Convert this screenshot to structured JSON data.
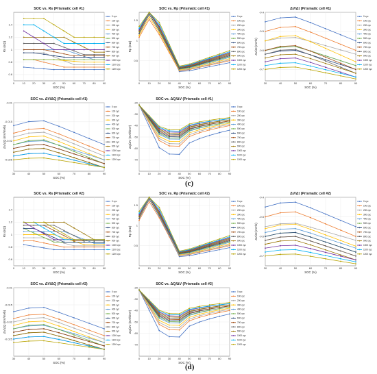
{
  "captions": {
    "c": "(c)",
    "d": "(d)"
  },
  "legend_labels": [
    "0 cyc",
    "100 cyc",
    "200 cyc",
    "300 cyc",
    "400 cyc",
    "500 cyc",
    "600 cyc",
    "700 cyc",
    "800 cyc",
    "900 cyc",
    "1000 cyc",
    "1100 cyc",
    "1200 cyc"
  ],
  "series_colors": [
    "#4472c4",
    "#ed7d31",
    "#a5a5a5",
    "#ffc000",
    "#5b9bd5",
    "#70ad47",
    "#264478",
    "#9e480e",
    "#636363",
    "#997300",
    "#7030a0",
    "#00b0f0",
    "#b8a300"
  ],
  "chart_data": [
    {
      "type": "line",
      "title": "SOC vs. Rs (Prismatic cell #1)",
      "xlabel": "SOC (%)",
      "ylabel": "Rs (mΩ)",
      "x": [
        10,
        20,
        30,
        40,
        50,
        60,
        70,
        80,
        90
      ],
      "xlim": [
        0,
        90
      ],
      "ylim": [
        0.5,
        1.6
      ],
      "xticks": [
        0,
        10,
        20,
        30,
        40,
        50,
        60,
        70,
        80,
        90
      ],
      "yticks": [
        0.6,
        0.8,
        1.0,
        1.2,
        1.4
      ],
      "start": [
        0.72,
        0.84,
        0.95,
        0.84,
        1.0,
        0.84,
        0.95,
        1.0,
        1.1,
        1.2,
        1.3,
        1.4,
        1.5
      ],
      "end": [
        0.68,
        0.72,
        0.76,
        0.8,
        0.84,
        0.84,
        0.88,
        0.9,
        0.92,
        0.96,
        1.0,
        1.1,
        1.2
      ],
      "shape": "rs"
    },
    {
      "type": "line",
      "title": "SOC vs. Rp (Prismatic cell #1)",
      "xlabel": "SOC (%)",
      "ylabel": "Rp (mΩ)",
      "x": [
        0,
        10,
        20,
        30,
        40,
        50,
        60,
        70,
        80,
        90
      ],
      "xlim": [
        0,
        90
      ],
      "ylim": [
        0,
        1.7
      ],
      "xticks": [
        0,
        10,
        20,
        30,
        40,
        50,
        60,
        70,
        80,
        90
      ],
      "yticks": [
        0.5,
        1.0,
        1.5
      ],
      "start": [
        1.4,
        1.2,
        1.3,
        1.25,
        1.3,
        1.35,
        1.3,
        1.4,
        1.3,
        1.35,
        1.4,
        1.45,
        1.5
      ],
      "end": [
        0.45,
        0.5,
        0.52,
        0.55,
        0.58,
        0.6,
        0.62,
        0.64,
        0.66,
        0.68,
        0.7,
        0.72,
        0.75
      ],
      "shape": "rp"
    },
    {
      "type": "line",
      "title": "ΔV/Δt (Prismatic cell #1)",
      "xlabel": "SOC (%)",
      "ylabel": "ΔV/Δt (mV/s)",
      "x": [
        30,
        40,
        50,
        60,
        70,
        80,
        90
      ],
      "xlim": [
        30,
        90
      ],
      "ylim": [
        -0.76,
        -0.4
      ],
      "xticks": [
        30,
        40,
        50,
        60,
        70,
        80,
        90
      ],
      "yticks": [
        -0.7,
        -0.6,
        -0.5,
        -0.4
      ],
      "start": [
        -0.45,
        -0.5,
        -0.55,
        -0.55,
        -0.6,
        -0.6,
        -0.62,
        -0.6,
        -0.62,
        -0.64,
        -0.66,
        -0.68,
        -0.7
      ],
      "end": [
        -0.55,
        -0.6,
        -0.62,
        -0.66,
        -0.68,
        -0.68,
        -0.7,
        -0.7,
        -0.72,
        -0.72,
        -0.74,
        -0.74,
        -0.75
      ],
      "shape": "dv"
    },
    {
      "type": "line",
      "title": "SOC vs. ΔV/ΔQ (Prismatic cell #1)",
      "xlabel": "SOC (%)",
      "ylabel": "ΔV/ΔQ (mV/mAh)",
      "x": [
        30,
        40,
        50,
        60,
        70,
        80,
        90
      ],
      "xlim": [
        30,
        90
      ],
      "ylim": [
        -0.028,
        -0.01
      ],
      "xticks": [
        30,
        40,
        50,
        60,
        70,
        80,
        90
      ],
      "yticks": [
        -0.025,
        -0.02,
        -0.015,
        -0.01
      ],
      "start": [
        -0.016,
        -0.018,
        -0.019,
        -0.02,
        -0.021,
        -0.021,
        -0.022,
        -0.022,
        -0.023,
        -0.023,
        -0.024,
        -0.024,
        -0.025
      ],
      "end": [
        -0.021,
        -0.023,
        -0.024,
        -0.025,
        -0.025,
        -0.026,
        -0.026,
        -0.026,
        -0.027,
        -0.027,
        -0.027,
        -0.027,
        -0.027
      ],
      "shape": "dv"
    },
    {
      "type": "line",
      "title": "SOC vs. ΔQ/ΔV (Prismatic cell #1)",
      "xlabel": "SOC (%)",
      "ylabel": "ΔQ/ΔV (mAh/mV)",
      "x": [
        0,
        10,
        20,
        30,
        40,
        50,
        60,
        70,
        80,
        90
      ],
      "xlim": [
        0,
        90
      ],
      "ylim": [
        -80,
        -20
      ],
      "xticks": [
        0,
        10,
        20,
        30,
        40,
        50,
        60,
        70,
        80,
        90
      ],
      "yticks": [
        -70,
        -60,
        -50,
        -40,
        -30,
        -20
      ],
      "start": [
        -64,
        -57,
        -55,
        -53,
        -51,
        -50,
        -49,
        -48,
        -47,
        -46,
        -45,
        -44,
        -43
      ],
      "end": [
        -44,
        -40,
        -39,
        -38,
        -37,
        -37,
        -36,
        -36,
        -35,
        -35,
        -34,
        -34,
        -33
      ],
      "shape": "dq"
    },
    {
      "type": "line",
      "title": "SOC vs. Rs (Prismatic cell #2)",
      "xlabel": "SOC (%)",
      "ylabel": "Rs (mΩ)",
      "x": [
        10,
        20,
        30,
        40,
        50,
        60,
        70,
        80,
        90
      ],
      "xlim": [
        0,
        90
      ],
      "ylim": [
        0.5,
        1.6
      ],
      "xticks": [
        0,
        10,
        20,
        30,
        40,
        50,
        60,
        70,
        80,
        90
      ],
      "yticks": [
        0.6,
        0.8,
        1.0,
        1.2,
        1.4
      ],
      "start": [
        0.84,
        0.9,
        0.95,
        1.0,
        1.05,
        1.1,
        1.1,
        1.15,
        1.15,
        1.2,
        1.2,
        1.2,
        1.2
      ],
      "end": [
        0.76,
        0.8,
        0.82,
        0.84,
        0.86,
        0.88,
        0.88,
        0.9,
        0.9,
        0.92,
        0.92,
        0.92,
        0.92
      ],
      "shape": "rs"
    },
    {
      "type": "line",
      "title": "SOC vs. Rp (Prismatic cell #2)",
      "xlabel": "SOC (%)",
      "ylabel": "Rp (mΩ)",
      "x": [
        0,
        10,
        20,
        30,
        40,
        50,
        60,
        70,
        80,
        90
      ],
      "xlim": [
        0,
        90
      ],
      "ylim": [
        0,
        1.7
      ],
      "xticks": [
        0,
        10,
        20,
        30,
        40,
        50,
        60,
        70,
        80,
        90
      ],
      "yticks": [
        0.5,
        1.0,
        1.5
      ],
      "start": [
        1.3,
        1.25,
        1.3,
        1.35,
        1.3,
        1.4,
        1.35,
        1.4,
        1.3,
        1.35,
        1.4,
        1.45,
        1.5
      ],
      "end": [
        0.45,
        0.5,
        0.52,
        0.55,
        0.58,
        0.6,
        0.62,
        0.64,
        0.66,
        0.68,
        0.7,
        0.72,
        0.75
      ],
      "shape": "rp"
    },
    {
      "type": "line",
      "title": "ΔV/Δt (Prismatic cell #2)",
      "xlabel": "SOC (%)",
      "ylabel": "ΔV/Δt (mV/s)",
      "x": [
        30,
        40,
        50,
        60,
        70,
        80,
        90
      ],
      "xlim": [
        30,
        90
      ],
      "ylim": [
        -0.75,
        -0.4
      ],
      "xticks": [
        30,
        40,
        50,
        60,
        70,
        80,
        90
      ],
      "yticks": [
        -0.7,
        -0.6,
        -0.5,
        -0.4
      ],
      "start": [
        -0.45,
        -0.5,
        -0.55,
        -0.56,
        -0.58,
        -0.6,
        -0.6,
        -0.62,
        -0.62,
        -0.64,
        -0.66,
        -0.68,
        -0.7
      ],
      "end": [
        -0.55,
        -0.6,
        -0.62,
        -0.65,
        -0.66,
        -0.68,
        -0.68,
        -0.7,
        -0.7,
        -0.72,
        -0.72,
        -0.73,
        -0.74
      ],
      "shape": "dv"
    },
    {
      "type": "line",
      "title": "SOC vs. ΔV/ΔQ (Prismatic cell #2)",
      "xlabel": "SOC (%)",
      "ylabel": "ΔV/ΔQ (mV/mAh)",
      "x": [
        30,
        40,
        50,
        60,
        70,
        80,
        90
      ],
      "xlim": [
        30,
        90
      ],
      "ylim": [
        -0.03,
        -0.01
      ],
      "xticks": [
        30,
        40,
        50,
        60,
        70,
        80,
        90
      ],
      "yticks": [
        -0.025,
        -0.02,
        -0.015,
        -0.01
      ],
      "start": [
        -0.017,
        -0.019,
        -0.02,
        -0.021,
        -0.022,
        -0.022,
        -0.023,
        -0.023,
        -0.024,
        -0.024,
        -0.025,
        -0.025,
        -0.026
      ],
      "end": [
        -0.022,
        -0.024,
        -0.025,
        -0.026,
        -0.026,
        -0.027,
        -0.027,
        -0.027,
        -0.028,
        -0.028,
        -0.028,
        -0.028,
        -0.028
      ],
      "shape": "dv"
    },
    {
      "type": "line",
      "title": "SOC vs. ΔQ/ΔV (Prismatic cell #2)",
      "xlabel": "SOC (%)",
      "ylabel": "ΔQ/ΔV (mAh/mV)",
      "x": [
        0,
        10,
        20,
        30,
        40,
        50,
        60,
        70,
        80,
        90
      ],
      "xlim": [
        0,
        90
      ],
      "ylim": [
        -80,
        -20
      ],
      "xticks": [
        0,
        10,
        20,
        30,
        40,
        50,
        60,
        70,
        80,
        90
      ],
      "yticks": [
        -70,
        -60,
        -50,
        -40,
        -30,
        -20
      ],
      "start": [
        -62,
        -56,
        -54,
        -52,
        -50,
        -49,
        -48,
        -47,
        -46,
        -45,
        -44,
        -43,
        -42
      ],
      "end": [
        -43,
        -40,
        -39,
        -38,
        -37,
        -37,
        -36,
        -36,
        -35,
        -35,
        -34,
        -34,
        -33
      ],
      "shape": "dq"
    }
  ]
}
